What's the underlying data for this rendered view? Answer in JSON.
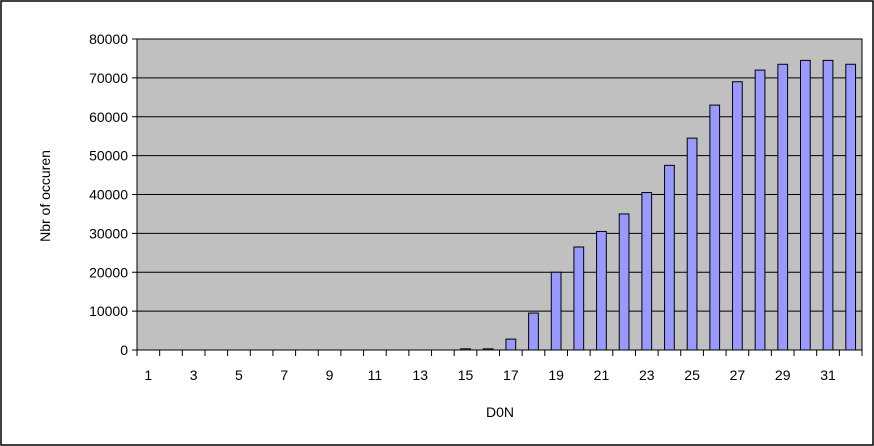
{
  "chart_data": {
    "type": "bar",
    "title": "",
    "xlabel": "D0N",
    "ylabel": "Nbr of occuren",
    "ylim": [
      0,
      80000
    ],
    "yticks": [
      0,
      10000,
      20000,
      30000,
      40000,
      50000,
      60000,
      70000,
      80000
    ],
    "ytick_labels": [
      "0",
      "10000",
      "20000",
      "30000",
      "40000",
      "50000",
      "60000",
      "70000",
      "80000"
    ],
    "categories": [
      1,
      2,
      3,
      4,
      5,
      6,
      7,
      8,
      9,
      10,
      11,
      12,
      13,
      14,
      15,
      16,
      17,
      18,
      19,
      20,
      21,
      22,
      23,
      24,
      25,
      26,
      27,
      28,
      29,
      30,
      31,
      32
    ],
    "xtick_labels": [
      "1",
      "3",
      "5",
      "7",
      "9",
      "11",
      "13",
      "15",
      "17",
      "19",
      "21",
      "23",
      "25",
      "27",
      "29",
      "31"
    ],
    "values": [
      0,
      0,
      0,
      0,
      0,
      0,
      0,
      0,
      0,
      0,
      0,
      0,
      0,
      0,
      300,
      300,
      2800,
      9500,
      20000,
      26500,
      30500,
      35000,
      40500,
      47500,
      54500,
      63000,
      69000,
      72000,
      73500,
      74500,
      74500,
      73500
    ],
    "grid": true,
    "legend": "none",
    "colors": {
      "plot_background": "#c0c0c0",
      "bar_fill": "#9999ff",
      "bar_stroke": "#000000",
      "grid": "#000000",
      "frame": "#000000"
    }
  }
}
